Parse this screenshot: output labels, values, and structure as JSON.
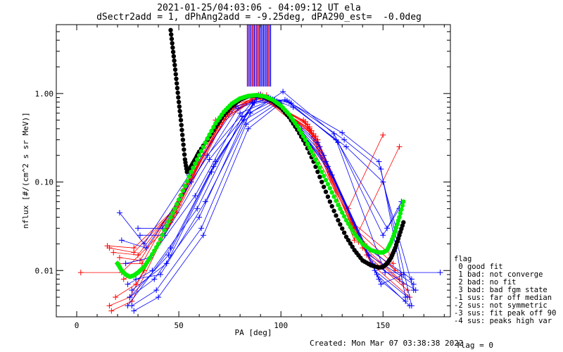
{
  "title_line1": "2021-01-25/04:03:06 - 04:09:12 UT ela",
  "title_line2": "dSectr2add = 1, dPhAng2add = -9.25deg, dPA290_est=  -0.0deg",
  "footer_created": "Created: Mon Mar 07 03:38:38 2022",
  "footer_flag": "flag = 0",
  "legend": {
    "title": "flag",
    "items": [
      " 0 good fit",
      " 1 bad: not converge",
      " 2 bad: no fit",
      " 3 bad: bad fgm state",
      "-1 sus: far off median",
      "-2 sus: not symmetric",
      "-3 sus: fit peak off 90",
      "-4 sus: peaks high var"
    ]
  },
  "colors": {
    "red": "#ff0000",
    "blue": "#0000ff",
    "green": "#00ee00",
    "black": "#000000",
    "purple": "#8000a0"
  },
  "chart_data": {
    "type": "scatter",
    "xlabel": "PA [deg]",
    "ylabel": "nflux [#/(cm^2 s sr MeV)]",
    "xlim": [
      -10,
      183
    ],
    "ylim": [
      0.003,
      6
    ],
    "yscale": "log",
    "x_ticks": [
      0,
      50,
      100,
      150
    ],
    "y_ticks": [
      0.01,
      0.1,
      1.0
    ],
    "y_tick_labels": [
      "0.01",
      "0.10",
      "1.00"
    ],
    "vertical_lines": {
      "x": [
        83.5,
        84.0,
        84.5,
        85.0,
        85.5,
        86.0,
        86.5,
        87.0,
        87.5,
        88.0,
        88.5,
        89.0,
        89.5,
        90.0,
        90.5,
        91.0,
        91.5,
        92.0,
        92.5,
        93.0,
        93.5,
        94.0,
        94.5,
        95.0
      ],
      "colors": [
        "#8000a0",
        "#0000ff",
        "#ff0000",
        "#0000ff",
        "#8000a0",
        "#ff0000",
        "#0000ff",
        "#0000ff",
        "#ff0000",
        "#8000a0",
        "#0000ff",
        "#ff0000",
        "#0000ff",
        "#0000ff",
        "#ff0000",
        "#0000ff",
        "#8000a0",
        "#0000ff",
        "#ff0000",
        "#0000ff",
        "#0000ff",
        "#ff0000",
        "#0000ff",
        "#0000ff"
      ],
      "y_from": 1.2
    },
    "series": [
      {
        "color": "red",
        "x": [
          15,
          28,
          48,
          72,
          90,
          113,
          138,
          158
        ],
        "y": [
          0.019,
          0.018,
          0.05,
          0.6,
          0.98,
          0.45,
          0.021,
          0.008
        ]
      },
      {
        "color": "red",
        "x": [
          18,
          30,
          50,
          74,
          91,
          114,
          140,
          160
        ],
        "y": [
          0.016,
          0.015,
          0.06,
          0.65,
          0.95,
          0.42,
          0.018,
          0.007
        ]
      },
      {
        "color": "red",
        "x": [
          20,
          32,
          52,
          76,
          92,
          116,
          142,
          162
        ],
        "y": [
          0.012,
          0.012,
          0.08,
          0.7,
          0.9,
          0.35,
          0.015,
          0.006
        ]
      },
      {
        "color": "red",
        "x": [
          2,
          22,
          44,
          68,
          89,
          111,
          137,
          156
        ],
        "y": [
          0.0095,
          0.0095,
          0.03,
          0.5,
          0.92,
          0.5,
          0.025,
          0.01
        ]
      },
      {
        "color": "red",
        "x": [
          16,
          26,
          46,
          70,
          88,
          112,
          136,
          155
        ],
        "y": [
          0.004,
          0.005,
          0.035,
          0.45,
          0.9,
          0.48,
          0.03,
          0.012
        ]
      },
      {
        "color": "red",
        "x": [
          17,
          27,
          47,
          71,
          90,
          110,
          135,
          154
        ],
        "y": [
          0.0035,
          0.0045,
          0.04,
          0.5,
          0.94,
          0.4,
          0.035,
          0.015
        ]
      },
      {
        "color": "red",
        "x": [
          23,
          33,
          53,
          77,
          93,
          118,
          144,
          163
        ],
        "y": [
          0.008,
          0.01,
          0.09,
          0.75,
          0.96,
          0.3,
          0.012,
          0.005
        ]
      },
      {
        "color": "red",
        "x": [
          19,
          29,
          49,
          73,
          90,
          115,
          141,
          159
        ],
        "y": [
          0.005,
          0.007,
          0.045,
          0.55,
          0.93,
          0.38,
          0.02,
          0.009
        ]
      },
      {
        "color": "red",
        "x": [
          21,
          31,
          51,
          75,
          91,
          117,
          133,
          150
        ],
        "y": [
          0.014,
          0.013,
          0.07,
          0.62,
          0.91,
          0.33,
          0.05,
          0.34
        ]
      },
      {
        "color": "red",
        "x": [
          16,
          28,
          50,
          72,
          89,
          114,
          136,
          158
        ],
        "y": [
          0.018,
          0.016,
          0.055,
          0.58,
          0.97,
          0.4,
          0.022,
          0.25
        ]
      },
      {
        "color": "blue",
        "x": [
          21,
          33,
          55,
          78,
          95,
          118,
          142,
          164
        ],
        "y": [
          0.045,
          0.02,
          0.12,
          0.72,
          0.88,
          0.28,
          0.018,
          0.008
        ]
      },
      {
        "color": "blue",
        "x": [
          22,
          34,
          56,
          79,
          94,
          119,
          143,
          165
        ],
        "y": [
          0.022,
          0.018,
          0.1,
          0.68,
          0.9,
          0.25,
          0.015,
          0.007
        ]
      },
      {
        "color": "blue",
        "x": [
          24,
          36,
          58,
          80,
          96,
          121,
          145,
          166
        ],
        "y": [
          0.012,
          0.014,
          0.07,
          0.6,
          0.86,
          0.2,
          0.012,
          0.006
        ]
      },
      {
        "color": "blue",
        "x": [
          25,
          37,
          59,
          81,
          97,
          122,
          146,
          162
        ],
        "y": [
          0.007,
          0.01,
          0.05,
          0.55,
          0.84,
          0.17,
          0.01,
          0.005
        ]
      },
      {
        "color": "blue",
        "x": [
          26,
          38,
          60,
          82,
          98,
          123,
          147,
          163
        ],
        "y": [
          0.005,
          0.008,
          0.04,
          0.5,
          0.82,
          0.15,
          0.009,
          0.004
        ]
      },
      {
        "color": "blue",
        "x": [
          27,
          39,
          61,
          83,
          99,
          124,
          148,
          161
        ],
        "y": [
          0.004,
          0.006,
          0.03,
          0.45,
          0.8,
          0.13,
          0.008,
          0.0045
        ]
      },
      {
        "color": "blue",
        "x": [
          28,
          40,
          62,
          84,
          100,
          125,
          149,
          160
        ],
        "y": [
          0.0035,
          0.005,
          0.025,
          0.4,
          0.78,
          0.12,
          0.007,
          0.009
        ]
      },
      {
        "color": "blue",
        "x": [
          30,
          42,
          64,
          86,
          102,
          127,
          151,
          178
        ],
        "y": [
          0.03,
          0.03,
          0.2,
          0.8,
          0.85,
          0.3,
          0.0095,
          0.0095
        ]
      },
      {
        "color": "blue",
        "x": [
          31,
          43,
          65,
          87,
          103,
          128,
          152,
          159
        ],
        "y": [
          0.025,
          0.025,
          0.18,
          0.78,
          0.83,
          0.28,
          0.03,
          0.06
        ]
      },
      {
        "color": "blue",
        "x": [
          29,
          41,
          63,
          85,
          101,
          126,
          150,
          158
        ],
        "y": [
          0.008,
          0.009,
          0.06,
          0.6,
          1.05,
          0.35,
          0.025,
          0.05
        ]
      },
      {
        "color": "blue",
        "x": [
          27,
          44,
          66,
          88,
          104,
          130,
          148,
          164
        ],
        "y": [
          0.006,
          0.012,
          0.13,
          0.9,
          0.8,
          0.36,
          0.17,
          0.004
        ]
      },
      {
        "color": "blue",
        "x": [
          26,
          45,
          67,
          89,
          105,
          131,
          149,
          161
        ],
        "y": [
          0.005,
          0.015,
          0.15,
          0.95,
          0.78,
          0.3,
          0.14,
          0.005
        ]
      },
      {
        "color": "blue",
        "x": [
          25,
          46,
          68,
          90,
          106,
          132,
          150,
          165
        ],
        "y": [
          0.004,
          0.018,
          0.17,
          0.97,
          0.7,
          0.25,
          0.1,
          0.006
        ]
      }
    ],
    "green_fit": {
      "x": [
        20,
        22,
        24,
        26,
        28,
        30,
        33,
        36,
        40,
        44,
        48,
        52,
        56,
        60,
        64,
        68,
        72,
        76,
        80,
        84,
        88,
        92,
        96,
        100,
        104,
        108,
        112,
        116,
        120,
        124,
        128,
        132,
        136,
        140,
        144,
        148,
        150,
        152,
        154,
        156,
        158,
        160
      ],
      "y": [
        0.012,
        0.01,
        0.009,
        0.0085,
        0.0088,
        0.0095,
        0.011,
        0.014,
        0.02,
        0.032,
        0.05,
        0.08,
        0.13,
        0.2,
        0.31,
        0.46,
        0.62,
        0.77,
        0.88,
        0.94,
        0.96,
        0.93,
        0.85,
        0.73,
        0.58,
        0.43,
        0.3,
        0.2,
        0.13,
        0.085,
        0.055,
        0.037,
        0.026,
        0.02,
        0.017,
        0.016,
        0.016,
        0.017,
        0.021,
        0.028,
        0.04,
        0.06
      ]
    },
    "black_fit": {
      "x": [
        46,
        47,
        48,
        49,
        50,
        51,
        52,
        53,
        54,
        56,
        58,
        60,
        64,
        68,
        72,
        76,
        80,
        84,
        88,
        92,
        96,
        100,
        104,
        108,
        112,
        116,
        120,
        124,
        128,
        132,
        136,
        140,
        144,
        148,
        150,
        152,
        154,
        156,
        158,
        160
      ],
      "y": [
        5.2,
        3.3,
        2.1,
        1.3,
        0.8,
        0.5,
        0.3,
        0.18,
        0.13,
        0.15,
        0.18,
        0.22,
        0.3,
        0.42,
        0.57,
        0.72,
        0.85,
        0.93,
        0.95,
        0.91,
        0.82,
        0.69,
        0.54,
        0.39,
        0.27,
        0.17,
        0.1,
        0.06,
        0.037,
        0.024,
        0.017,
        0.013,
        0.0115,
        0.0108,
        0.011,
        0.012,
        0.014,
        0.018,
        0.025,
        0.035
      ]
    }
  }
}
